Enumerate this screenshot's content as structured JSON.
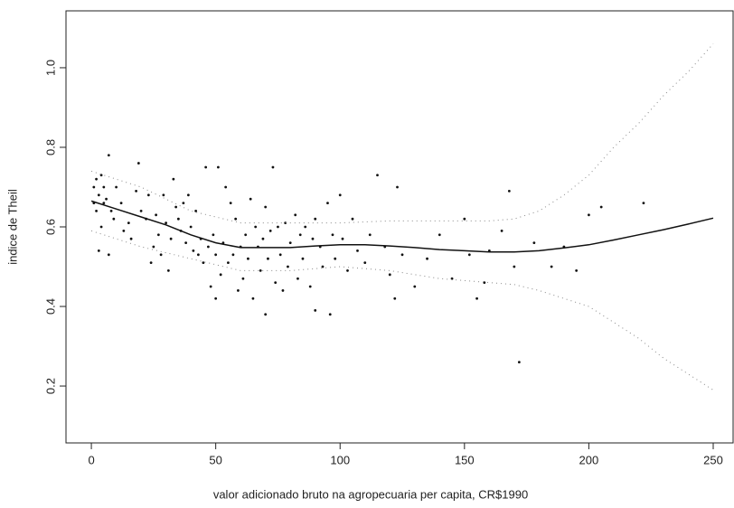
{
  "chart_data": {
    "type": "scatter",
    "x_label": "valor adicionado bruto na agropecuaria per capita, CR$1990",
    "y_label": "indice de Theil",
    "xlim": [
      -10.2,
      258
    ],
    "ylim": [
      0.057,
      1.143
    ],
    "xticks": [
      0,
      50,
      100,
      150,
      200,
      250
    ],
    "yticks": [
      0.2,
      0.4,
      0.6,
      0.8,
      {
        "value": 1,
        "label": "1.0"
      }
    ],
    "series": [
      {
        "kind": "points",
        "color": "#111111",
        "x": [
          1,
          1,
          2,
          2,
          3,
          3,
          4,
          4,
          5,
          5,
          6,
          7,
          7,
          8,
          9,
          10,
          12,
          13,
          15,
          16,
          18,
          19,
          20,
          22,
          23,
          24,
          25,
          26,
          27,
          28,
          29,
          30,
          31,
          32,
          33,
          34,
          35,
          36,
          37,
          38,
          39,
          40,
          41,
          42,
          43,
          44,
          45,
          46,
          47,
          48,
          49,
          50,
          50,
          51,
          52,
          53,
          54,
          55,
          56,
          57,
          58,
          59,
          60,
          61,
          62,
          63,
          64,
          65,
          66,
          67,
          68,
          69,
          70,
          70,
          71,
          72,
          73,
          74,
          75,
          76,
          77,
          78,
          79,
          80,
          82,
          83,
          84,
          85,
          86,
          88,
          89,
          90,
          90,
          92,
          93,
          95,
          96,
          97,
          98,
          100,
          101,
          103,
          105,
          107,
          110,
          112,
          115,
          118,
          120,
          122,
          123,
          125,
          130,
          135,
          140,
          145,
          150,
          152,
          155,
          158,
          160,
          165,
          168,
          170,
          172,
          178,
          185,
          190,
          195,
          200,
          205,
          222
        ],
        "values": [
          0.7,
          0.66,
          0.72,
          0.64,
          0.68,
          0.54,
          0.73,
          0.6,
          0.7,
          0.66,
          0.67,
          0.78,
          0.53,
          0.64,
          0.62,
          0.7,
          0.66,
          0.59,
          0.61,
          0.57,
          0.69,
          0.76,
          0.64,
          0.62,
          0.68,
          0.51,
          0.55,
          0.63,
          0.58,
          0.53,
          0.68,
          0.61,
          0.49,
          0.57,
          0.72,
          0.65,
          0.62,
          0.59,
          0.66,
          0.56,
          0.68,
          0.6,
          0.54,
          0.64,
          0.53,
          0.57,
          0.51,
          0.75,
          0.55,
          0.45,
          0.58,
          0.42,
          0.53,
          0.75,
          0.48,
          0.56,
          0.7,
          0.51,
          0.66,
          0.53,
          0.62,
          0.44,
          0.55,
          0.47,
          0.58,
          0.52,
          0.67,
          0.42,
          0.6,
          0.55,
          0.49,
          0.57,
          0.38,
          0.65,
          0.52,
          0.59,
          0.75,
          0.46,
          0.6,
          0.53,
          0.44,
          0.61,
          0.5,
          0.56,
          0.63,
          0.47,
          0.58,
          0.52,
          0.6,
          0.45,
          0.57,
          0.39,
          0.62,
          0.55,
          0.5,
          0.66,
          0.38,
          0.58,
          0.52,
          0.68,
          0.57,
          0.49,
          0.62,
          0.54,
          0.51,
          0.58,
          0.73,
          0.55,
          0.48,
          0.42,
          0.7,
          0.53,
          0.45,
          0.52,
          0.58,
          0.47,
          0.62,
          0.53,
          0.42,
          0.46,
          0.54,
          0.59,
          0.69,
          0.5,
          0.26,
          0.56,
          0.5,
          0.55,
          0.49,
          0.63,
          0.65,
          0.66
        ]
      },
      {
        "kind": "line",
        "color": "#111111",
        "x": [
          0,
          10,
          20,
          30,
          40,
          50,
          60,
          70,
          80,
          90,
          100,
          110,
          120,
          130,
          140,
          150,
          160,
          170,
          180,
          190,
          200,
          210,
          220,
          230,
          240,
          250
        ],
        "values": [
          0.665,
          0.645,
          0.625,
          0.605,
          0.58,
          0.56,
          0.548,
          0.548,
          0.548,
          0.552,
          0.555,
          0.555,
          0.552,
          0.548,
          0.543,
          0.54,
          0.537,
          0.537,
          0.54,
          0.547,
          0.555,
          0.567,
          0.58,
          0.593,
          0.607,
          0.622
        ]
      },
      {
        "kind": "dotted",
        "color": "#888888",
        "x": [
          0,
          20,
          40,
          60,
          80,
          100,
          120,
          140,
          160,
          170,
          180,
          190,
          200,
          210,
          220,
          230,
          240,
          250
        ],
        "values": [
          0.74,
          0.7,
          0.64,
          0.61,
          0.61,
          0.61,
          0.615,
          0.615,
          0.615,
          0.62,
          0.64,
          0.68,
          0.73,
          0.8,
          0.86,
          0.93,
          0.99,
          1.06
        ]
      },
      {
        "kind": "dotted",
        "color": "#888888",
        "x": [
          0,
          20,
          40,
          60,
          80,
          100,
          120,
          140,
          160,
          170,
          180,
          190,
          200,
          210,
          220,
          230,
          240,
          250
        ],
        "values": [
          0.59,
          0.55,
          0.52,
          0.49,
          0.49,
          0.5,
          0.49,
          0.47,
          0.46,
          0.455,
          0.44,
          0.42,
          0.4,
          0.36,
          0.32,
          0.27,
          0.23,
          0.19
        ]
      }
    ]
  }
}
